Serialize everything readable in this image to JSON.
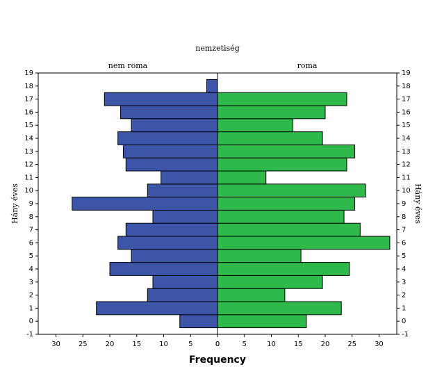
{
  "chart_data": {
    "type": "pyramid",
    "title": "nemzetiség",
    "x_label": "Frequency",
    "y_label": "Hány éves",
    "y": [
      0,
      1,
      2,
      3,
      4,
      5,
      6,
      7,
      8,
      9,
      10,
      11,
      12,
      13,
      14,
      15,
      16,
      17,
      18
    ],
    "series": [
      {
        "name": "nem roma",
        "color": "#3d55a8",
        "side": "left",
        "values": [
          7,
          22.5,
          13,
          12,
          20,
          16,
          18.5,
          17,
          12,
          27,
          13,
          10.5,
          17,
          17.5,
          18.5,
          16,
          18,
          21,
          2
        ]
      },
      {
        "name": "roma",
        "color": "#2fb94a",
        "side": "right",
        "values": [
          16.5,
          23,
          12.5,
          19.5,
          24.5,
          15.5,
          32,
          26.5,
          23.5,
          25.5,
          27.5,
          9,
          24,
          25.5,
          19.5,
          14,
          20,
          24,
          0
        ]
      }
    ],
    "xlim": [
      0,
      33.3
    ],
    "xticks": [
      0,
      5,
      10,
      15,
      20,
      25,
      30
    ],
    "ylim": [
      -1,
      19
    ],
    "yticks": [
      -1,
      0,
      1,
      2,
      3,
      4,
      5,
      6,
      7,
      8,
      9,
      10,
      11,
      12,
      13,
      14,
      15,
      16,
      17,
      18,
      19
    ]
  }
}
